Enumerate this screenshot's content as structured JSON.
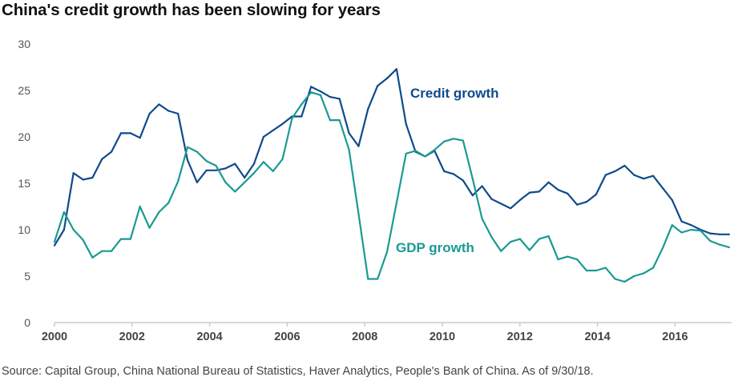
{
  "header": {
    "title": "China's credit growth has been slowing for years"
  },
  "footer": {
    "source": "Source: Capital Group, China National Bureau of Statistics, Haver Analytics, People's Bank of China. As of 9/30/18."
  },
  "chart_data": {
    "type": "line",
    "title": "China's credit growth has been slowing for years",
    "xlabel": "",
    "ylabel": "",
    "x_start": 2000,
    "x_step": 0.245,
    "xlim": [
      2000,
      2017.5
    ],
    "ylim": [
      0,
      30
    ],
    "grid": false,
    "x_ticks": [
      "2000",
      "2002",
      "2004",
      "2006",
      "2008",
      "2010",
      "2012",
      "2014",
      "2016"
    ],
    "y_ticks": [
      "0",
      "5",
      "10",
      "15",
      "20",
      "25",
      "30"
    ],
    "legend": "inline-labels",
    "series": [
      {
        "name": "Credit growth",
        "color": "#0f4a8c",
        "values": [
          8.3,
          10.0,
          16.1,
          15.4,
          15.6,
          17.6,
          18.4,
          20.4,
          20.4,
          19.9,
          22.5,
          23.5,
          22.8,
          22.5,
          17.5,
          15.1,
          16.4,
          16.4,
          16.6,
          17.1,
          15.6,
          17.1,
          20.0,
          20.7,
          21.4,
          22.2,
          22.2,
          25.4,
          24.9,
          24.3,
          24.1,
          20.4,
          19.0,
          23.0,
          25.5,
          26.3,
          27.3,
          21.4,
          18.4,
          17.9,
          18.5,
          16.3,
          16.0,
          15.3,
          13.7,
          14.7,
          13.3,
          12.8,
          12.3,
          13.2,
          14.0,
          14.1,
          15.1,
          14.3,
          13.9,
          12.7,
          13.0,
          13.8,
          15.9,
          16.3,
          16.9,
          15.9,
          15.5,
          15.8,
          14.5,
          13.2,
          10.9,
          10.5,
          10.0,
          9.6,
          9.5,
          9.5
        ]
      },
      {
        "name": "GDP growth",
        "color": "#1a9a92",
        "values": [
          8.7,
          11.9,
          10.0,
          8.9,
          7.0,
          7.7,
          7.7,
          9.0,
          9.0,
          12.5,
          10.2,
          11.9,
          12.9,
          15.2,
          18.9,
          18.4,
          17.4,
          16.9,
          15.1,
          14.1,
          15.1,
          16.1,
          17.3,
          16.3,
          17.6,
          22.0,
          23.5,
          24.8,
          24.5,
          21.8,
          21.8,
          18.6,
          11.7,
          4.7,
          4.7,
          7.6,
          12.9,
          18.2,
          18.5,
          17.9,
          18.6,
          19.5,
          19.8,
          19.6,
          15.5,
          11.2,
          9.2,
          7.7,
          8.7,
          9.0,
          7.8,
          9.0,
          9.3,
          6.8,
          7.1,
          6.8,
          5.6,
          5.6,
          5.9,
          4.7,
          4.4,
          5.0,
          5.3,
          5.9,
          8.0,
          10.5,
          9.7,
          10.0,
          9.9,
          8.8,
          8.4,
          8.1
        ]
      }
    ],
    "annotations": [
      "Credit growth",
      "GDP growth"
    ]
  }
}
